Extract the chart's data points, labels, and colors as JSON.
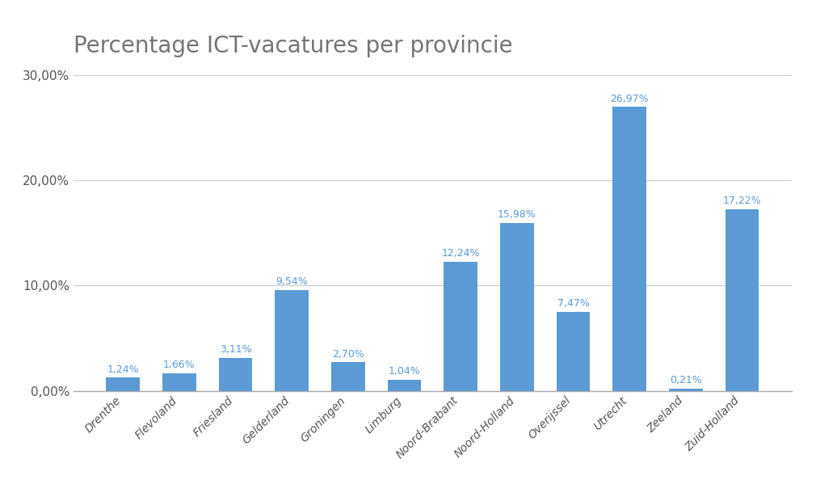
{
  "title": "Percentage ICT-vacatures per provincie",
  "categories": [
    "Drenthe",
    "Flevoland",
    "Friesland",
    "Gelderland",
    "Groningen",
    "Limburg",
    "Noord-Brabant",
    "Noord-Holland",
    "Overijssel",
    "Utrecht",
    "Zeeland",
    "Zuid-Holland"
  ],
  "values": [
    1.24,
    1.66,
    3.11,
    9.54,
    2.7,
    1.04,
    12.24,
    15.98,
    7.47,
    26.97,
    0.21,
    17.22
  ],
  "labels": [
    "1,24%",
    "1,66%",
    "3,11%",
    "9,54%",
    "2,70%",
    "1,04%",
    "12,24%",
    "15,98%",
    "7,47%",
    "26,97%",
    "0,21%",
    "17,22%"
  ],
  "bar_color": "#5b9bd5",
  "label_color": "#5b9bd5",
  "background_color": "#ffffff",
  "title_fontsize": 20,
  "title_color": "#757575",
  "tick_color": "#555555",
  "grid_color": "#cccccc",
  "ylim": [
    0,
    30
  ],
  "yticks": [
    0,
    10,
    20,
    30
  ],
  "ytick_labels": [
    "0,00%",
    "10,00%",
    "20,00%",
    "30,00%"
  ]
}
